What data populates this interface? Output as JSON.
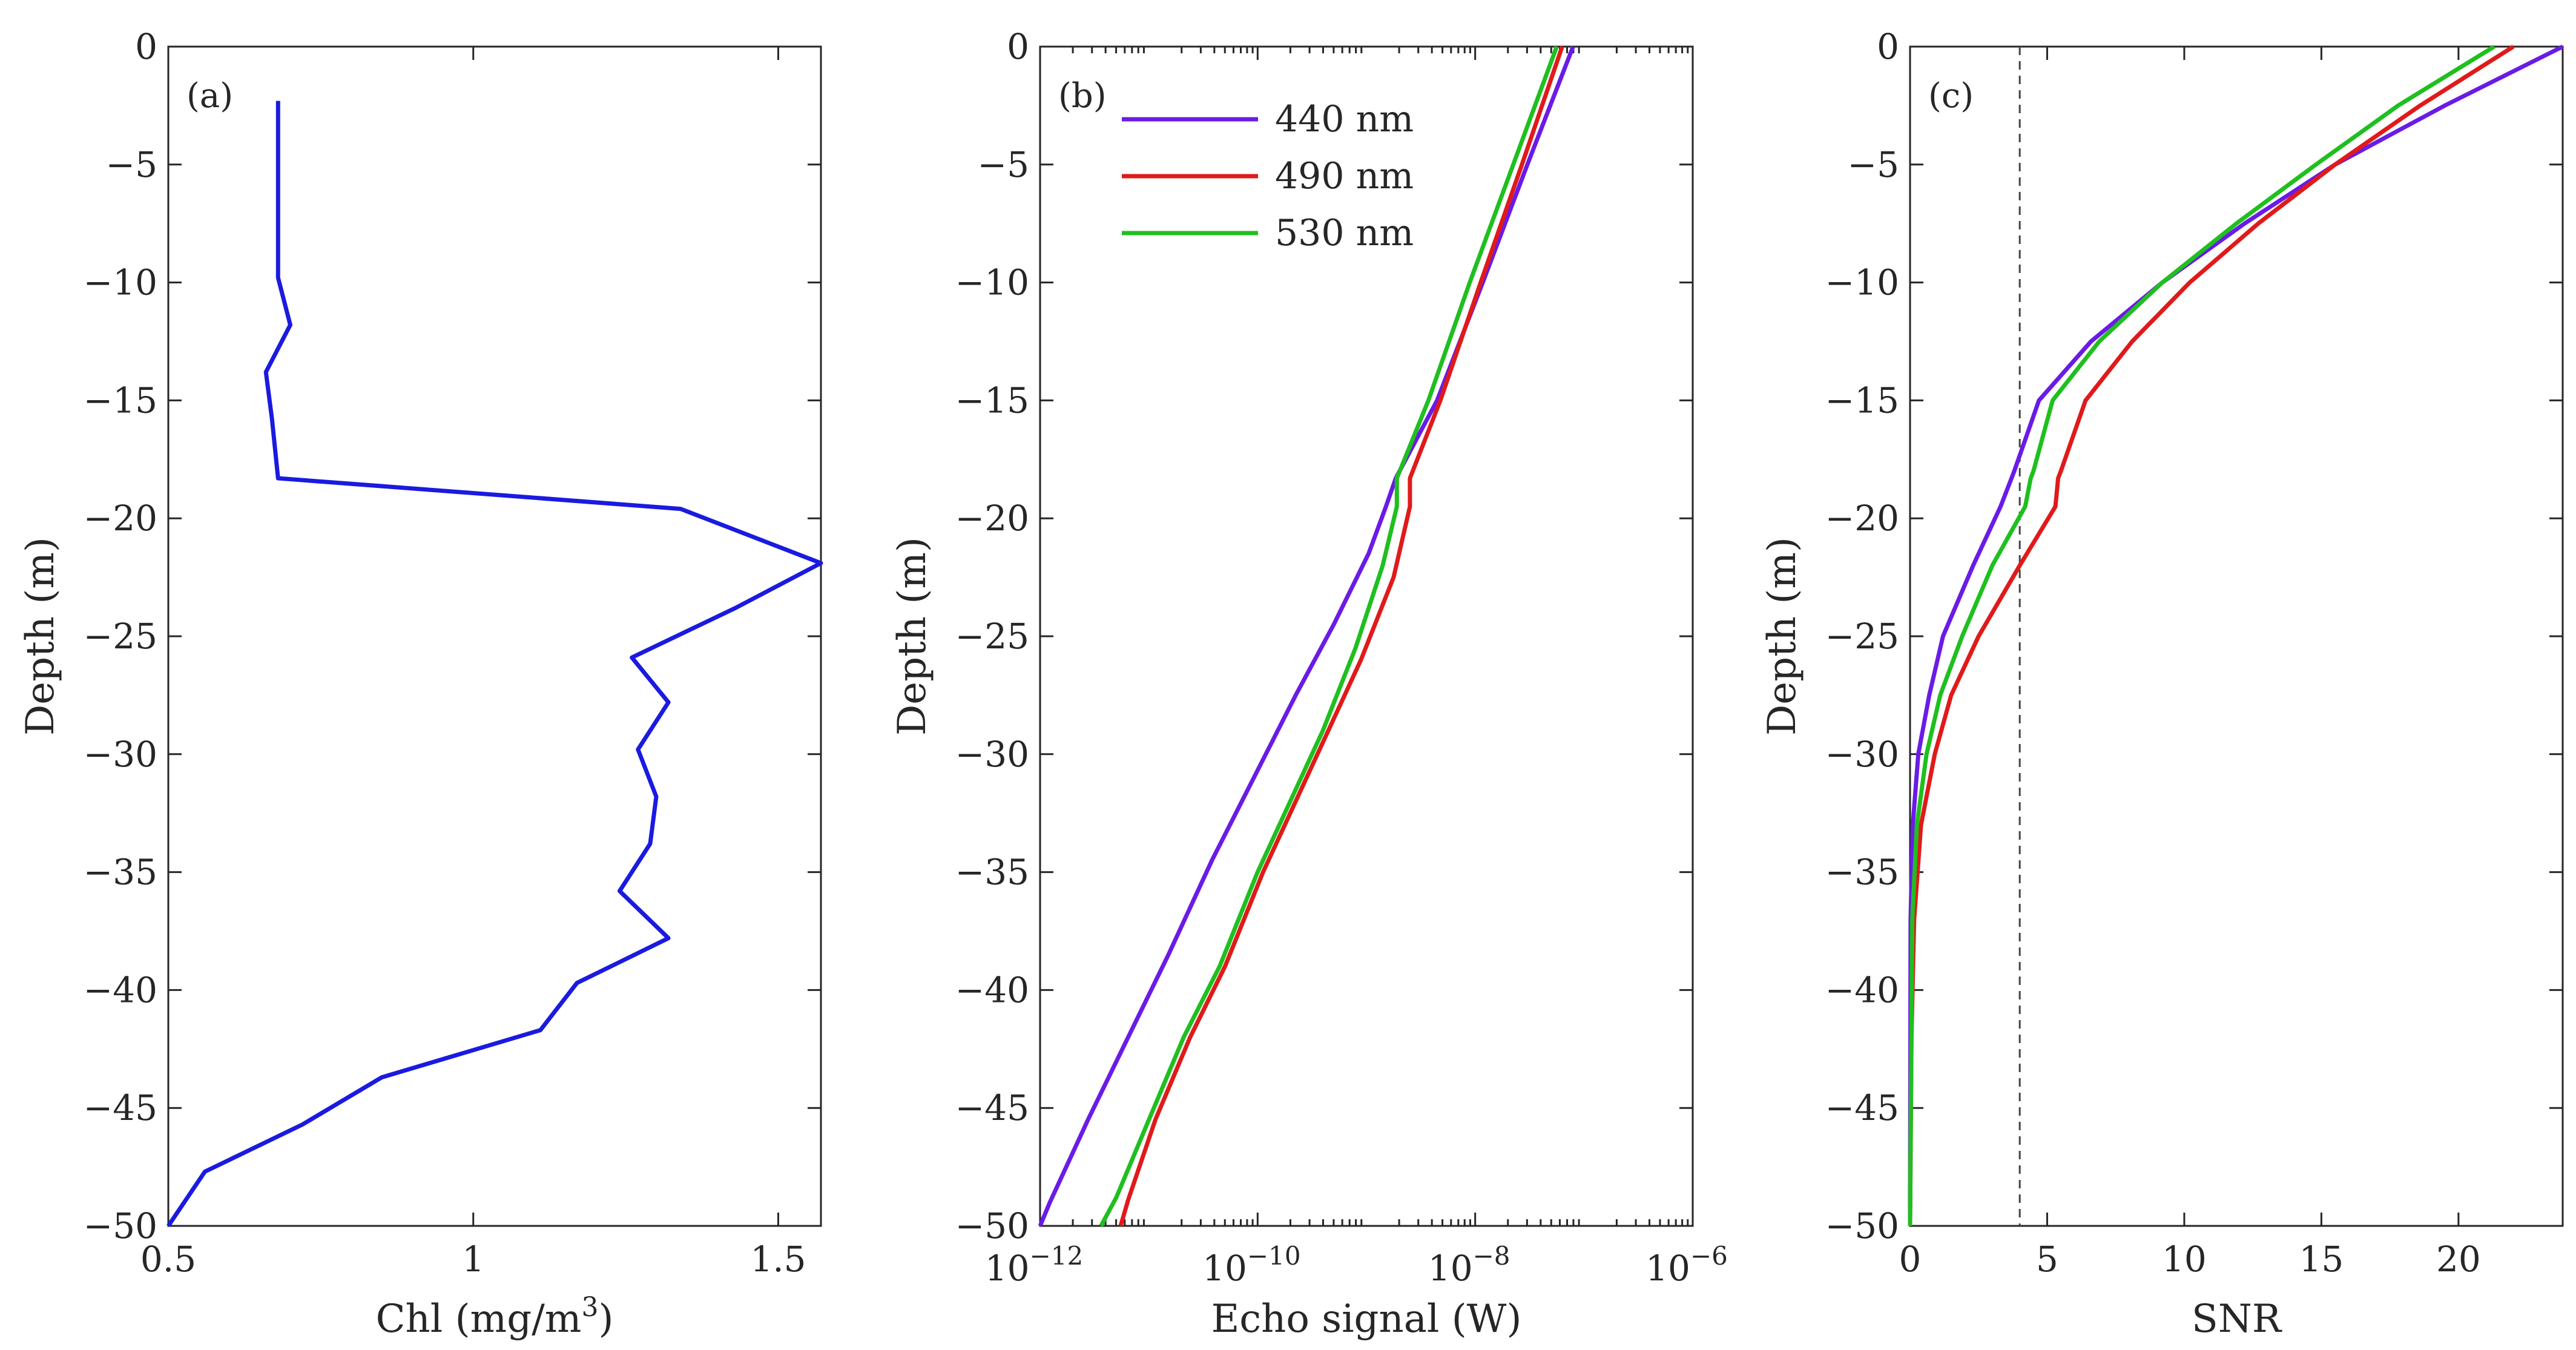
{
  "chart_data": [
    {
      "type": "line",
      "panel": "(a)",
      "xlabel": "Chl (mg/m",
      "xlabel_sup": "3",
      "xlabel_end": ")",
      "ylabel": "Depth (m)",
      "xscale": "linear",
      "xlim": [
        0.5,
        1.57
      ],
      "ylim": [
        -50,
        0
      ],
      "xticks": [
        0.5,
        1,
        1.5
      ],
      "xtick_labels": [
        "0.5",
        "1",
        "1.5"
      ],
      "yticks": [
        0,
        -5,
        -10,
        -15,
        -20,
        -25,
        -30,
        -35,
        -40,
        -45,
        -50
      ],
      "ytick_labels": [
        "0",
        "−5",
        "−10",
        "−15",
        "−20",
        "−25",
        "−30",
        "−35",
        "−40",
        "−45",
        "−50"
      ],
      "series": [
        {
          "name": "Chl",
          "color": "#1a1ae0",
          "x": [
            0.68,
            0.68,
            0.7,
            0.66,
            0.67,
            0.68,
            1.34,
            1.57,
            1.43,
            1.26,
            1.32,
            1.27,
            1.3,
            1.29,
            1.24,
            1.32,
            1.17,
            1.11,
            0.85,
            0.72,
            0.56,
            0.5
          ],
          "y": [
            -2.3,
            -9.8,
            -11.8,
            -13.8,
            -15.8,
            -18.3,
            -19.6,
            -21.9,
            -23.8,
            -25.9,
            -27.8,
            -29.8,
            -31.8,
            -33.8,
            -35.8,
            -37.8,
            -39.7,
            -41.7,
            -43.7,
            -45.7,
            -47.7,
            -50
          ]
        }
      ]
    },
    {
      "type": "line",
      "panel": "(b)",
      "xlabel": "Echo signal (W)",
      "ylabel": "Depth (m)",
      "xscale": "log",
      "xlim_exp": [
        -12,
        -6
      ],
      "ylim": [
        -50,
        0
      ],
      "xtick_exps": [
        -12,
        -10,
        -8,
        -6
      ],
      "xtick_base": "10",
      "xtick_sups": [
        "−12",
        "−10",
        "−8",
        "−6"
      ],
      "yticks": [
        0,
        -5,
        -10,
        -15,
        -20,
        -25,
        -30,
        -35,
        -40,
        -45,
        -50
      ],
      "ytick_labels": [
        "0",
        "−5",
        "−10",
        "−15",
        "−20",
        "−25",
        "−30",
        "−35",
        "−40",
        "−45",
        "−50"
      ],
      "legend_position": "top-left",
      "series": [
        {
          "name": "440 nm",
          "color": "#6a1be6",
          "log10_x": [
            -7.1,
            -7.52,
            -7.93,
            -8.35,
            -8.73,
            -8.82,
            -8.98,
            -9.3,
            -9.65,
            -9.98,
            -10.42,
            -10.82,
            -11.19,
            -11.56,
            -11.91,
            -12.05
          ],
          "y": [
            0,
            -5,
            -10,
            -15,
            -18.3,
            -19.5,
            -21.5,
            -24.5,
            -27.5,
            -30.5,
            -34.5,
            -38.5,
            -42,
            -45.5,
            -49,
            -50
          ]
        },
        {
          "name": "490 nm",
          "color": "#e01a1a",
          "log10_x": [
            -7.2,
            -7.57,
            -7.95,
            -8.32,
            -8.6,
            -8.6,
            -8.75,
            -9.05,
            -9.35,
            -9.65,
            -9.95,
            -10.3,
            -10.62,
            -10.94,
            -11.19,
            -11.26
          ],
          "y": [
            0,
            -5,
            -10,
            -15,
            -18.3,
            -19.5,
            -22.5,
            -26,
            -29,
            -32,
            -35,
            -39,
            -42,
            -45.5,
            -48.9,
            -50
          ]
        },
        {
          "name": "530 nm",
          "color": "#1fbf1f",
          "log10_x": [
            -7.25,
            -7.65,
            -8.05,
            -8.43,
            -8.72,
            -8.72,
            -8.85,
            -9.1,
            -9.4,
            -9.7,
            -10.0,
            -10.35,
            -10.68,
            -11.0,
            -11.3,
            -11.44
          ],
          "y": [
            0,
            -5,
            -10,
            -15,
            -18.3,
            -19.5,
            -22,
            -25.5,
            -29,
            -32,
            -35,
            -39,
            -42,
            -45.5,
            -48.8,
            -50
          ]
        }
      ]
    },
    {
      "type": "line",
      "panel": "(c)",
      "xlabel": "SNR",
      "ylabel": "Depth (m)",
      "xscale": "linear",
      "xlim": [
        0,
        23.8
      ],
      "ylim": [
        -50,
        0
      ],
      "xticks": [
        0,
        5,
        10,
        15,
        20
      ],
      "xtick_labels": [
        "0",
        "5",
        "10",
        "15",
        "20"
      ],
      "yticks": [
        0,
        -5,
        -10,
        -15,
        -20,
        -25,
        -30,
        -35,
        -40,
        -45,
        -50
      ],
      "ytick_labels": [
        "0",
        "−5",
        "−10",
        "−15",
        "−20",
        "−25",
        "−30",
        "−35",
        "−40",
        "−45",
        "−50"
      ],
      "reference_line": {
        "x": 4,
        "style": "dashed",
        "color": "#444444"
      },
      "series": [
        {
          "name": "440 nm",
          "color": "#6a1be6",
          "x": [
            23.8,
            19.5,
            15.5,
            12.2,
            9.2,
            6.6,
            4.7,
            3.8,
            3.7,
            3.3,
            2.3,
            1.2,
            0.7,
            0.3,
            0.1,
            0.02,
            0
          ],
          "y": [
            0,
            -2.5,
            -5,
            -7.5,
            -10,
            -12.5,
            -15,
            -18,
            -18.3,
            -19.5,
            -22,
            -25,
            -27.5,
            -30,
            -33,
            -37,
            -50
          ]
        },
        {
          "name": "490 nm",
          "color": "#e01a1a",
          "x": [
            22.0,
            18.6,
            15.5,
            12.7,
            10.2,
            8.1,
            6.4,
            5.5,
            5.4,
            5.3,
            4.0,
            2.5,
            1.5,
            0.9,
            0.4,
            0.15,
            0.05,
            0
          ],
          "y": [
            0,
            -2.5,
            -5,
            -7.5,
            -10,
            -12.5,
            -15,
            -18,
            -18.3,
            -19.5,
            -22,
            -25,
            -27.5,
            -30,
            -33,
            -37,
            -42,
            -50
          ]
        },
        {
          "name": "530 nm",
          "color": "#1fbf1f",
          "x": [
            21.3,
            17.8,
            14.8,
            11.9,
            9.2,
            6.9,
            5.2,
            4.5,
            4.4,
            4.2,
            3.0,
            1.9,
            1.1,
            0.6,
            0.25,
            0.08,
            0
          ],
          "y": [
            0,
            -2.5,
            -5,
            -7.5,
            -10,
            -12.5,
            -15,
            -18,
            -18.3,
            -19.5,
            -22,
            -25,
            -27.5,
            -30,
            -33,
            -37,
            -50
          ]
        }
      ]
    }
  ]
}
